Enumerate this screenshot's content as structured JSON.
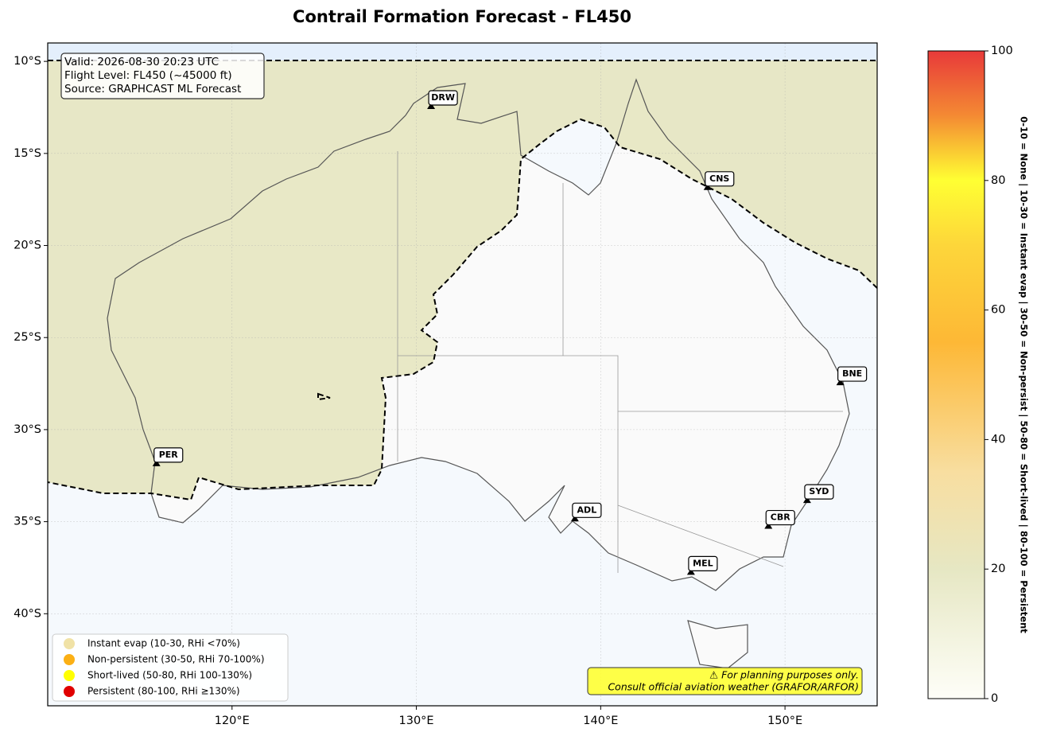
{
  "map": {
    "title": "Contrail Formation Forecast - FL450",
    "info_lines": [
      "Valid: 2026-08-30 20:23 UTC",
      "Flight Level: FL450 (~45000 ft)",
      "Source: GRAPHCAST ML Forecast"
    ],
    "xlim": [
      110,
      155
    ],
    "ylim": [
      -45,
      -9
    ],
    "xticks": [
      {
        "value": 120,
        "label": "120°E"
      },
      {
        "value": 130,
        "label": "130°E"
      },
      {
        "value": 140,
        "label": "140°E"
      },
      {
        "value": 150,
        "label": "150°E"
      }
    ],
    "yticks": [
      {
        "value": -10,
        "label": "10°S"
      },
      {
        "value": -15,
        "label": "15°S"
      },
      {
        "value": -20,
        "label": "20°S"
      },
      {
        "value": -25,
        "label": "25°S"
      },
      {
        "value": -30,
        "label": "30°S"
      },
      {
        "value": -35,
        "label": "35°S"
      },
      {
        "value": -40,
        "label": "40°S"
      }
    ],
    "grid": true,
    "cities": [
      {
        "label": "DRW",
        "lon": 130.8,
        "lat": -12.5
      },
      {
        "label": "CNS",
        "lon": 145.8,
        "lat": -16.9
      },
      {
        "label": "BNE",
        "lon": 153.0,
        "lat": -27.5
      },
      {
        "label": "PER",
        "lon": 115.9,
        "lat": -31.9
      },
      {
        "label": "ADL",
        "lon": 138.6,
        "lat": -34.9
      },
      {
        "label": "SYD",
        "lon": 151.2,
        "lat": -33.9
      },
      {
        "label": "CBR",
        "lon": 149.1,
        "lat": -35.3
      },
      {
        "label": "MEL",
        "lon": 144.9,
        "lat": -37.8
      }
    ],
    "legend": [
      {
        "name": "Instant evap (10-30, RHi <70%)",
        "color": "#f0e2a6"
      },
      {
        "name": "Non-persistent (30-50, RHi 70-100%)",
        "color": "#fbb015"
      },
      {
        "name": "Short-lived (50-80, RHi 100-130%)",
        "color": "#ffff00"
      },
      {
        "name": "Persistent (80-100, RHi ≥130%)",
        "color": "#e00000"
      }
    ],
    "note_lines": [
      "⚠ For planning purposes only.",
      "Consult official aviation weather (GRAFOR/ARFOR)"
    ],
    "colorbar": {
      "lim": [
        0,
        100
      ],
      "ticks": [
        0,
        20,
        40,
        60,
        80,
        100
      ],
      "label": "0-10 = None  |  10-30 = Instant evap  |  30-50 = Non-persist  |  50-80 = Short-lived  |  80-100 = Persistent"
    }
  }
}
